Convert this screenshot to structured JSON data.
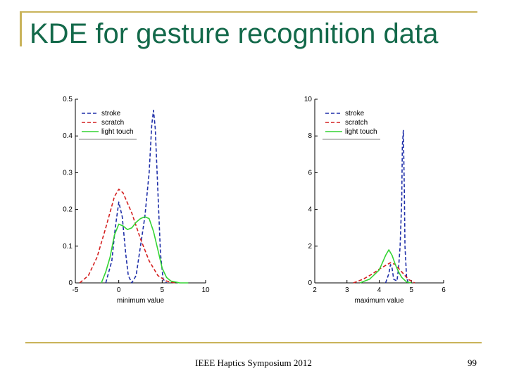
{
  "slide": {
    "title": "KDE for gesture recognition data",
    "footer": "IEEE Haptics Symposium 2012",
    "page_number": "99"
  },
  "colors": {
    "title": "#13694a",
    "rule": "#c9b35a",
    "stroke": "#1f2fa8",
    "scratch": "#d42020",
    "light_touch": "#33d433"
  },
  "chart_data": [
    {
      "type": "line",
      "xlabel": "minimum value",
      "ylabel": "",
      "xlim": [
        -5,
        10
      ],
      "ylim": [
        0,
        0.5
      ],
      "x_ticks": [
        "-5",
        "0",
        "5",
        "10"
      ],
      "y_ticks": [
        "0",
        "0.1",
        "0.2",
        "0.3",
        "0.4",
        "0.5"
      ],
      "legend": "top-left",
      "series": [
        {
          "name": "stroke",
          "color": "#1f2fa8",
          "style": "dashed",
          "x": [
            -1.5,
            -0.8,
            -0.4,
            0,
            0.4,
            0.8,
            1.1,
            1.5,
            2.0,
            2.5,
            3.0,
            3.5,
            3.8,
            4.0,
            4.2,
            4.5,
            4.8,
            5.1,
            5.5
          ],
          "y": [
            0.0,
            0.06,
            0.15,
            0.22,
            0.18,
            0.08,
            0.02,
            0.0,
            0.02,
            0.1,
            0.18,
            0.3,
            0.43,
            0.47,
            0.42,
            0.25,
            0.08,
            0.01,
            0.0
          ]
        },
        {
          "name": "scratch",
          "color": "#d42020",
          "style": "dashed",
          "x": [
            -4.5,
            -3.5,
            -2.5,
            -1.5,
            -0.5,
            0,
            0.5,
            1.5,
            2.5,
            3.5,
            4.5,
            5.5,
            6.5
          ],
          "y": [
            0.0,
            0.02,
            0.07,
            0.15,
            0.235,
            0.255,
            0.245,
            0.19,
            0.12,
            0.06,
            0.02,
            0.005,
            0.0
          ]
        },
        {
          "name": "light touch",
          "color": "#33d433",
          "style": "solid",
          "x": [
            -2.0,
            -1.5,
            -1.0,
            -0.5,
            0,
            0.5,
            1.0,
            1.5,
            2.0,
            2.5,
            3.0,
            3.5,
            4.0,
            4.5,
            5.0,
            5.5,
            6.0,
            7.0,
            8.0
          ],
          "y": [
            0.0,
            0.03,
            0.07,
            0.13,
            0.16,
            0.155,
            0.145,
            0.15,
            0.165,
            0.175,
            0.18,
            0.175,
            0.14,
            0.09,
            0.04,
            0.015,
            0.005,
            0.0,
            0.0
          ]
        }
      ]
    },
    {
      "type": "line",
      "xlabel": "maximum value",
      "ylabel": "",
      "xlim": [
        2,
        6
      ],
      "ylim": [
        0,
        10
      ],
      "x_ticks": [
        "2",
        "3",
        "4",
        "5",
        "6"
      ],
      "y_ticks": [
        "0",
        "2",
        "4",
        "6",
        "8",
        "10"
      ],
      "legend": "top-left",
      "series": [
        {
          "name": "stroke",
          "color": "#1f2fa8",
          "style": "dashed",
          "x": [
            4.2,
            4.3,
            4.35,
            4.4,
            4.45,
            4.55,
            4.6,
            4.65,
            4.7,
            4.72,
            4.75,
            4.78,
            4.8,
            4.85,
            4.9
          ],
          "y": [
            0.0,
            0.5,
            1.0,
            0.8,
            0.2,
            0.1,
            0.8,
            2.0,
            4.5,
            7.5,
            8.3,
            5.0,
            2.0,
            0.3,
            0.0
          ]
        },
        {
          "name": "scratch",
          "color": "#d42020",
          "style": "dashed",
          "x": [
            3.2,
            3.5,
            3.8,
            4.0,
            4.2,
            4.35,
            4.5,
            4.7,
            4.9,
            5.1
          ],
          "y": [
            0.0,
            0.2,
            0.5,
            0.75,
            0.95,
            1.1,
            1.0,
            0.6,
            0.2,
            0.0
          ]
        },
        {
          "name": "light touch",
          "color": "#33d433",
          "style": "solid",
          "x": [
            3.4,
            3.7,
            4.0,
            4.1,
            4.2,
            4.3,
            4.4,
            4.5,
            4.6,
            4.7,
            4.85,
            5.0
          ],
          "y": [
            0.0,
            0.2,
            0.7,
            1.1,
            1.5,
            1.8,
            1.5,
            1.0,
            0.6,
            0.3,
            0.05,
            0.0
          ]
        }
      ]
    }
  ]
}
